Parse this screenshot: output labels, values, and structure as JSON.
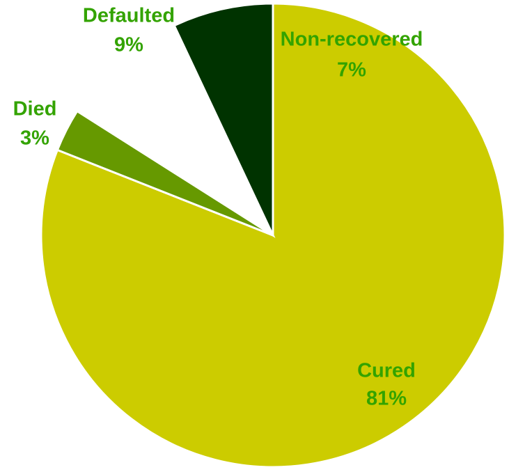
{
  "chart_data": {
    "type": "pie",
    "categories": [
      "Cured",
      "Died",
      "Defaulted",
      "Non-recovered"
    ],
    "values": [
      81,
      3,
      9,
      7
    ],
    "value_labels": [
      "81%",
      "3%",
      "9%",
      "7%"
    ],
    "colors": [
      "#cccc00",
      "#669900",
      "#ffffff",
      "#003300"
    ],
    "label_color": "#33a300"
  }
}
